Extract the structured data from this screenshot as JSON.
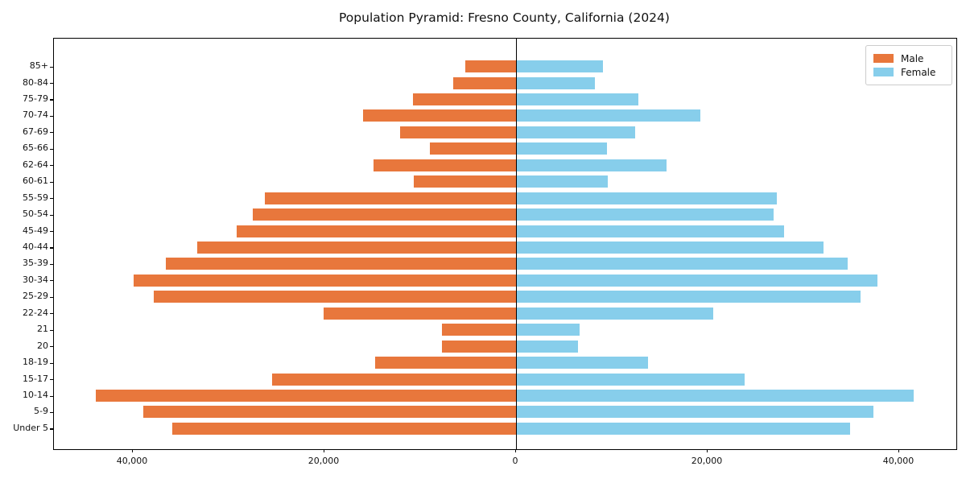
{
  "title": "Population Pyramid: Fresno County, California (2024)",
  "legend": {
    "male_label": "Male",
    "female_label": "Female",
    "position": "upper right"
  },
  "colors": {
    "male": "#E8773C",
    "female": "#87CEEB",
    "axis": "#000000",
    "legend_border": "#cccccc"
  },
  "chart_data": {
    "type": "bar",
    "subtype": "population-pyramid",
    "title": "Population Pyramid: Fresno County, California (2024)",
    "categories_top_to_bottom": [
      "85+",
      "80-84",
      "75-79",
      "70-74",
      "67-69",
      "65-66",
      "62-64",
      "60-61",
      "55-59",
      "50-54",
      "45-49",
      "40-44",
      "35-39",
      "30-34",
      "25-29",
      "22-24",
      "21",
      "20",
      "18-19",
      "15-17",
      "10-14",
      "5-9",
      "Under 5"
    ],
    "series": [
      {
        "name": "Male",
        "side": "left",
        "color": "#E8773C",
        "values": [
          5300,
          6600,
          10800,
          16000,
          12100,
          9000,
          14900,
          10700,
          26200,
          27500,
          29200,
          33300,
          36600,
          39900,
          37800,
          20100,
          7700,
          7700,
          14700,
          25500,
          43900,
          38900,
          35900
        ]
      },
      {
        "name": "Female",
        "side": "right",
        "color": "#87CEEB",
        "values": [
          9100,
          8200,
          12800,
          19200,
          12400,
          9500,
          15700,
          9600,
          27200,
          26900,
          28000,
          32100,
          34600,
          37700,
          36000,
          20600,
          6600,
          6500,
          13800,
          23900,
          41500,
          37300,
          34900
        ]
      }
    ],
    "x_ticks": [
      {
        "value": -40000,
        "label": "40,000"
      },
      {
        "value": -20000,
        "label": "20,000"
      },
      {
        "value": 0,
        "label": "0"
      },
      {
        "value": 20000,
        "label": "20,000"
      },
      {
        "value": 40000,
        "label": "40,000"
      }
    ],
    "xlim": [
      -48200,
      46000
    ],
    "grid": false,
    "legend_position": "upper right",
    "xlabel": "",
    "ylabel": ""
  }
}
